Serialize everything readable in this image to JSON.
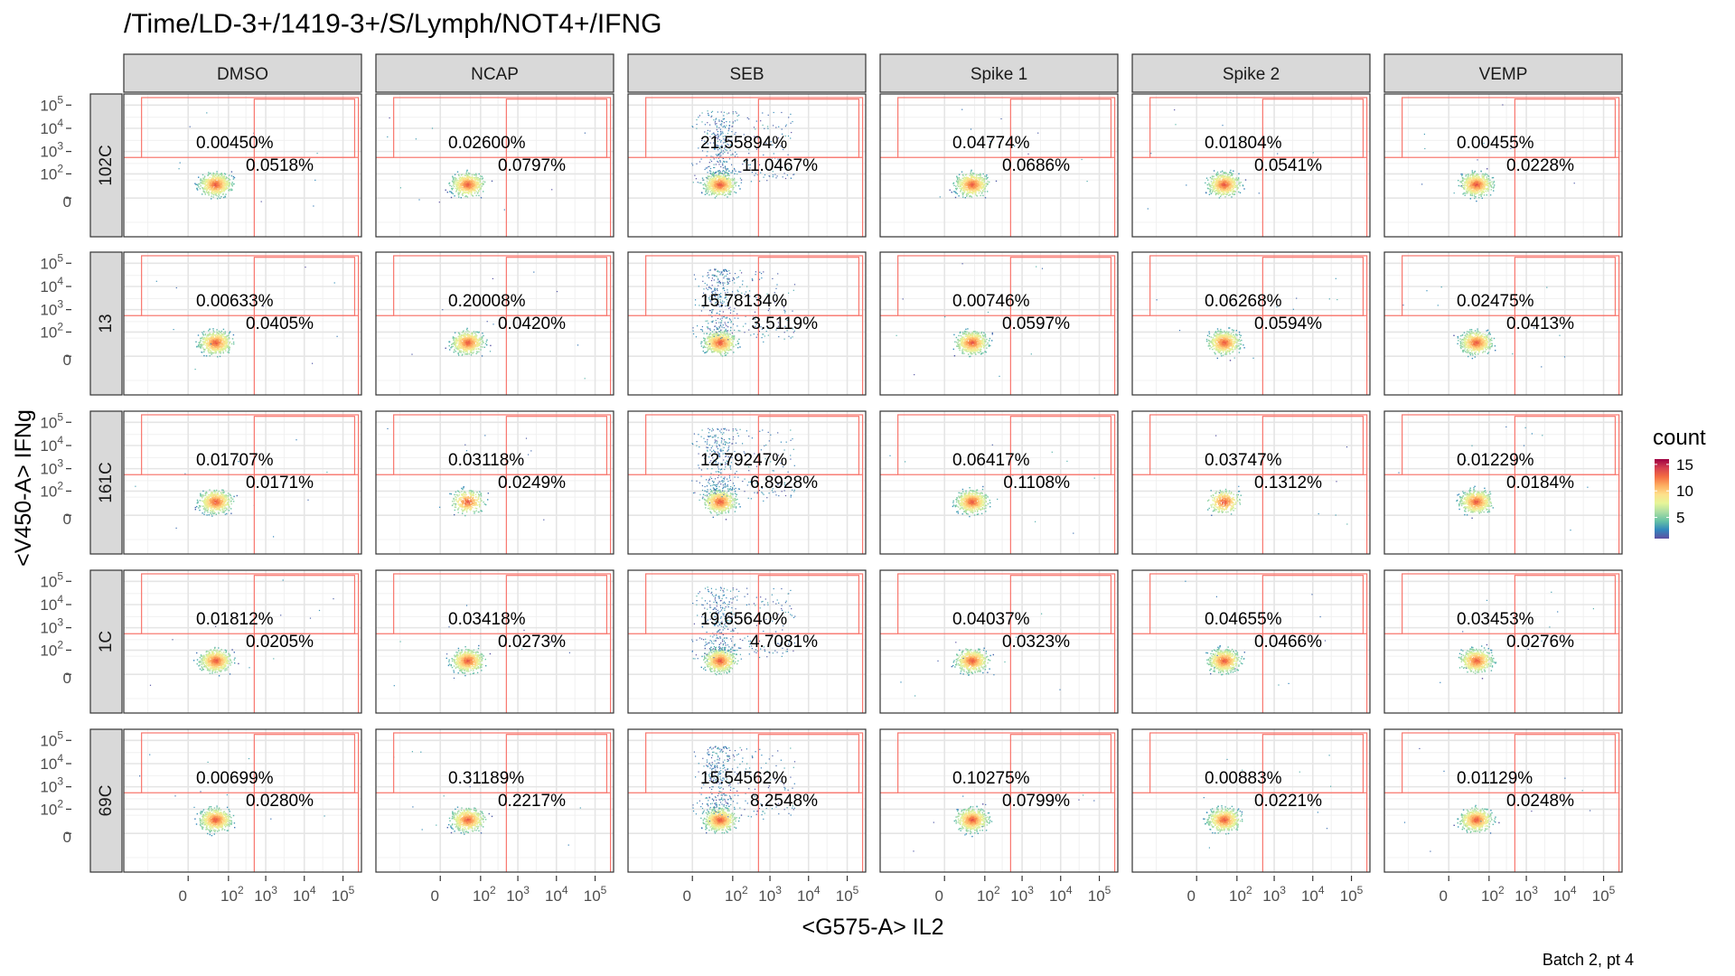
{
  "chart_data": {
    "type": "scatter",
    "title": "/Time/LD-3+/1419-3+/S/Lymph/NOT4+/IFNG",
    "xlabel": "<G575-A> IL2",
    "ylabel": "<V450-A> IFNg",
    "caption": "Batch 2, pt 4",
    "columns": [
      "DMSO",
      "NCAP",
      "SEB",
      "Spike 1",
      "Spike 2",
      "VEMP"
    ],
    "rows": [
      "102C",
      "13",
      "161C",
      "1C",
      "69C"
    ],
    "x_ticks": [
      {
        "label": "0",
        "value": 0
      },
      {
        "label": "10",
        "sup": "2",
        "value": 100
      },
      {
        "label": "10",
        "sup": "3",
        "value": 1000
      },
      {
        "label": "10",
        "sup": "4",
        "value": 10000
      },
      {
        "label": "10",
        "sup": "5",
        "value": 100000
      }
    ],
    "y_ticks": [
      {
        "label": "0",
        "value": 0
      },
      {
        "label": "10",
        "sup": "2",
        "value": 100
      },
      {
        "label": "10",
        "sup": "3",
        "value": 1000
      },
      {
        "label": "10",
        "sup": "4",
        "value": 10000
      },
      {
        "label": "10",
        "sup": "5",
        "value": 100000
      }
    ],
    "gates": {
      "outer": {
        "x_min": -150,
        "x_max": 250000,
        "y_min": 550,
        "y_max": 210000
      },
      "inner": {
        "x_min": 500,
        "x_max": 200000,
        "y_min": 550,
        "y_max": 180000
      }
    },
    "legend": {
      "title": "count",
      "ticks": [
        5,
        10,
        15
      ],
      "position": "right",
      "colors": [
        "#5e4fa2",
        "#3288bd",
        "#66c2a5",
        "#abdda4",
        "#e6f598",
        "#fee08b",
        "#fdae61",
        "#f46d43",
        "#d53e4f",
        "#9e0142"
      ]
    },
    "gate_color": "#f8766d",
    "strip_color": "#d9d9d9",
    "panels": [
      [
        "0.00450%",
        "0.0518%",
        "0.02600%",
        "0.0797%",
        "21.55894%",
        "11.0467%",
        "0.04774%",
        "0.0686%",
        "0.01804%",
        "0.0541%",
        "0.00455%",
        "0.0228%"
      ],
      [
        "0.00633%",
        "0.0405%",
        "0.20008%",
        "0.0420%",
        "15.78134%",
        "3.5119%",
        "0.00746%",
        "0.0597%",
        "0.06268%",
        "0.0594%",
        "0.02475%",
        "0.0413%"
      ],
      [
        "0.01707%",
        "0.0171%",
        "0.03118%",
        "0.0249%",
        "12.79247%",
        "6.8928%",
        "0.06417%",
        "0.1108%",
        "0.03747%",
        "0.1312%",
        "0.01229%",
        "0.0184%"
      ],
      [
        "0.01812%",
        "0.0205%",
        "0.03418%",
        "0.0273%",
        "19.65640%",
        "4.7081%",
        "0.04037%",
        "0.0323%",
        "0.04655%",
        "0.0466%",
        "0.03453%",
        "0.0276%"
      ],
      [
        "0.00699%",
        "0.0280%",
        "0.31189%",
        "0.2217%",
        "15.54562%",
        "8.2548%",
        "0.10275%",
        "0.0799%",
        "0.00883%",
        "0.0221%",
        "0.01129%",
        "0.0248%"
      ]
    ]
  }
}
